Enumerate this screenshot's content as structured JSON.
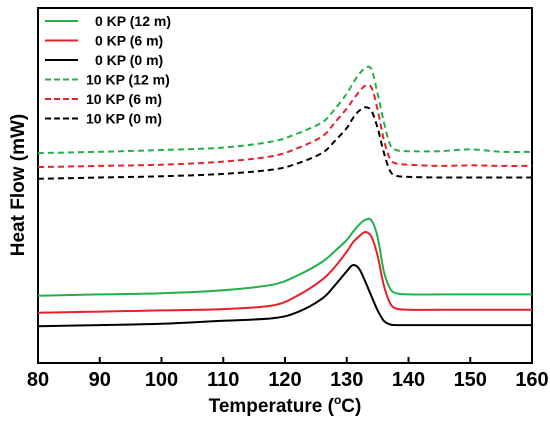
{
  "chart_data": {
    "type": "line",
    "xlabel": "Temperature (",
    "xlabel_sup": "o",
    "xlabel_tail": "C)",
    "ylabel": "Heat Flow (mW)",
    "xlim": [
      80,
      160
    ],
    "x_ticks": [
      "80",
      "90",
      "100",
      "110",
      "120",
      "130",
      "140",
      "150",
      "160"
    ],
    "y_ticks_shown": false,
    "grid": false,
    "legend_position": "top-left",
    "x": [
      80,
      90,
      100,
      110,
      118,
      122,
      126,
      128,
      130,
      131,
      132,
      133,
      134,
      135,
      136,
      137,
      138,
      140,
      145,
      150,
      155,
      160
    ],
    "series": [
      {
        "name": "0 KP (12 m)",
        "color": "#22b04a",
        "dash": "solid",
        "values": [
          5.0,
          5.2,
          5.4,
          5.9,
          6.8,
          8.3,
          10.5,
          12.2,
          14.1,
          15.4,
          16.6,
          17.4,
          17.3,
          14.6,
          9.0,
          6.2,
          5.4,
          5.2,
          5.2,
          5.2,
          5.2,
          5.2
        ]
      },
      {
        "name": "0 KP (6 m)",
        "color": "#e8202a",
        "dash": "solid",
        "values": [
          2.2,
          2.4,
          2.6,
          2.8,
          3.4,
          5.0,
          7.6,
          9.6,
          12.2,
          13.7,
          14.7,
          15.4,
          14.6,
          11.5,
          6.7,
          3.8,
          2.9,
          2.7,
          2.7,
          2.7,
          2.7,
          2.7
        ]
      },
      {
        "name": "0 KP (0 m)",
        "color": "#000000",
        "dash": "solid",
        "values": [
          0.0,
          0.2,
          0.4,
          0.9,
          1.3,
          2.3,
          4.5,
          6.6,
          9.0,
          10.0,
          9.4,
          7.3,
          4.9,
          2.6,
          0.9,
          0.3,
          0.2,
          0.2,
          0.2,
          0.2,
          0.2,
          0.2
        ]
      },
      {
        "name": "10 KP (12 m)",
        "color": "#22b04a",
        "dash": "dashed",
        "values": [
          28.3,
          28.5,
          28.8,
          29.2,
          30.2,
          31.5,
          33.3,
          35.4,
          38.0,
          39.7,
          41.2,
          42.2,
          42.0,
          38.0,
          33.4,
          29.7,
          28.8,
          28.6,
          28.6,
          28.9,
          28.5,
          28.5
        ]
      },
      {
        "name": "10 KP (6 m)",
        "color": "#e8202a",
        "dash": "dashed",
        "values": [
          26.0,
          26.2,
          26.4,
          26.9,
          27.8,
          29.1,
          31.0,
          33.2,
          35.6,
          37.0,
          38.3,
          39.3,
          39.0,
          35.4,
          30.5,
          27.4,
          26.6,
          26.4,
          26.2,
          26.3,
          26.2,
          26.2
        ]
      },
      {
        "name": "10 KP (0 m)",
        "color": "#000000",
        "dash": "dashed",
        "values": [
          24.1,
          24.3,
          24.5,
          24.9,
          25.6,
          26.6,
          28.3,
          30.2,
          32.4,
          34.0,
          35.2,
          35.8,
          35.2,
          32.4,
          28.4,
          25.4,
          24.6,
          24.4,
          24.3,
          24.3,
          24.3,
          24.3
        ]
      }
    ]
  }
}
